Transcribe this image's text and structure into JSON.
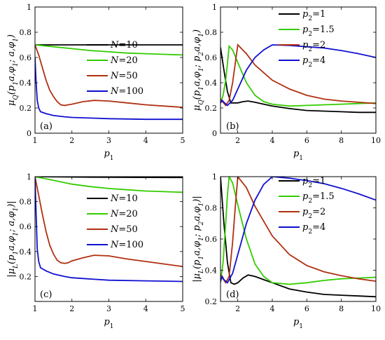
{
  "chart_data": [
    {
      "type": "line",
      "label": "(a)",
      "xlabel": "p1",
      "ylabel": "μQ(p1a,φ1; a,φ1)",
      "xlim": [
        1,
        5
      ],
      "ylim": [
        0,
        1
      ],
      "xticks": [
        1,
        2,
        3,
        4,
        5
      ],
      "yticks": [
        0,
        0.2,
        0.4,
        0.6,
        0.8,
        1
      ],
      "legend_position": "right",
      "series": [
        {
          "name": "N=10",
          "color": "#000000",
          "points": [
            [
              1,
              0.7
            ],
            [
              2,
              0.7
            ],
            [
              3,
              0.7
            ],
            [
              4,
              0.7
            ],
            [
              5,
              0.7
            ]
          ]
        },
        {
          "name": "N=20",
          "color": "#33cc00",
          "points": [
            [
              1,
              0.7
            ],
            [
              1.5,
              0.685
            ],
            [
              2,
              0.67
            ],
            [
              2.5,
              0.655
            ],
            [
              3,
              0.645
            ],
            [
              3.5,
              0.635
            ],
            [
              4,
              0.63
            ],
            [
              4.5,
              0.625
            ],
            [
              5,
              0.62
            ]
          ]
        },
        {
          "name": "N=50",
          "color": "#b03010",
          "points": [
            [
              1,
              0.7
            ],
            [
              1.1,
              0.62
            ],
            [
              1.2,
              0.52
            ],
            [
              1.3,
              0.42
            ],
            [
              1.4,
              0.34
            ],
            [
              1.5,
              0.29
            ],
            [
              1.6,
              0.25
            ],
            [
              1.7,
              0.225
            ],
            [
              1.8,
              0.22
            ],
            [
              1.9,
              0.225
            ],
            [
              2,
              0.23
            ],
            [
              2.3,
              0.25
            ],
            [
              2.6,
              0.26
            ],
            [
              3,
              0.255
            ],
            [
              3.5,
              0.24
            ],
            [
              4,
              0.225
            ],
            [
              4.5,
              0.215
            ],
            [
              5,
              0.205
            ]
          ]
        },
        {
          "name": "N=100",
          "color": "#1010d0",
          "points": [
            [
              1,
              0.6
            ],
            [
              1.03,
              0.4
            ],
            [
              1.06,
              0.26
            ],
            [
              1.1,
              0.2
            ],
            [
              1.15,
              0.17
            ],
            [
              1.3,
              0.155
            ],
            [
              1.5,
              0.14
            ],
            [
              1.8,
              0.13
            ],
            [
              2,
              0.125
            ],
            [
              2.5,
              0.12
            ],
            [
              3,
              0.115
            ],
            [
              4,
              0.11
            ],
            [
              5,
              0.11
            ]
          ]
        }
      ]
    },
    {
      "type": "line",
      "label": "(b)",
      "xlabel": "p1",
      "ylabel": "μQ(p1a,φ1; p2a,φ1)",
      "xlim": [
        1,
        10
      ],
      "ylim": [
        0,
        1
      ],
      "xticks": [
        2,
        4,
        6,
        8,
        10
      ],
      "yticks": [
        0,
        0.2,
        0.4,
        0.6,
        0.8,
        1
      ],
      "legend_position": "top-right",
      "series": [
        {
          "name": "p2=1",
          "color": "#000000",
          "points": [
            [
              1,
              0.68
            ],
            [
              1.2,
              0.5
            ],
            [
              1.4,
              0.33
            ],
            [
              1.6,
              0.24
            ],
            [
              1.8,
              0.24
            ],
            [
              2,
              0.24
            ],
            [
              2.3,
              0.25
            ],
            [
              2.6,
              0.255
            ],
            [
              3,
              0.245
            ],
            [
              3.5,
              0.23
            ],
            [
              4,
              0.215
            ],
            [
              5,
              0.195
            ],
            [
              6,
              0.18
            ],
            [
              7,
              0.175
            ],
            [
              8,
              0.17
            ],
            [
              9,
              0.165
            ],
            [
              10,
              0.165
            ]
          ]
        },
        {
          "name": "p2=1.5",
          "color": "#33cc00",
          "points": [
            [
              1,
              0.24
            ],
            [
              1.15,
              0.3
            ],
            [
              1.3,
              0.42
            ],
            [
              1.4,
              0.55
            ],
            [
              1.5,
              0.69
            ],
            [
              1.7,
              0.66
            ],
            [
              2,
              0.56
            ],
            [
              2.5,
              0.4
            ],
            [
              3,
              0.3
            ],
            [
              3.5,
              0.25
            ],
            [
              4,
              0.23
            ],
            [
              5,
              0.215
            ],
            [
              6,
              0.22
            ],
            [
              7,
              0.225
            ],
            [
              8,
              0.23
            ],
            [
              9,
              0.235
            ],
            [
              10,
              0.24
            ]
          ]
        },
        {
          "name": "p2=2",
          "color": "#b03010",
          "points": [
            [
              1,
              0.27
            ],
            [
              1.3,
              0.22
            ],
            [
              1.5,
              0.26
            ],
            [
              1.7,
              0.4
            ],
            [
              1.85,
              0.55
            ],
            [
              2,
              0.7
            ],
            [
              2.5,
              0.63
            ],
            [
              3,
              0.54
            ],
            [
              4,
              0.42
            ],
            [
              5,
              0.35
            ],
            [
              6,
              0.3
            ],
            [
              7,
              0.27
            ],
            [
              8,
              0.255
            ],
            [
              9,
              0.245
            ],
            [
              10,
              0.235
            ]
          ]
        },
        {
          "name": "p2=4",
          "color": "#1010d0",
          "points": [
            [
              1,
              0.24
            ],
            [
              1.1,
              0.26
            ],
            [
              1.2,
              0.245
            ],
            [
              1.4,
              0.22
            ],
            [
              1.7,
              0.26
            ],
            [
              2,
              0.35
            ],
            [
              2.5,
              0.5
            ],
            [
              3,
              0.6
            ],
            [
              3.5,
              0.66
            ],
            [
              4,
              0.7
            ],
            [
              5,
              0.695
            ],
            [
              6,
              0.685
            ],
            [
              7,
              0.675
            ],
            [
              8,
              0.655
            ],
            [
              9,
              0.63
            ],
            [
              10,
              0.6
            ]
          ]
        }
      ]
    },
    {
      "type": "line",
      "label": "(c)",
      "xlabel": "p1",
      "ylabel": "|μL(p1a,φ1; a,φ1)|",
      "xlim": [
        1,
        5
      ],
      "ylim": [
        0,
        1
      ],
      "xticks": [
        1,
        2,
        3,
        4,
        5
      ],
      "yticks": [
        0.2,
        0.4,
        0.6,
        0.8,
        1
      ],
      "legend_position": "right",
      "series": [
        {
          "name": "N=10",
          "color": "#000000",
          "points": [
            [
              1,
              1.0
            ],
            [
              2,
              0.997
            ],
            [
              3,
              0.995
            ],
            [
              4,
              0.994
            ],
            [
              5,
              0.993
            ]
          ]
        },
        {
          "name": "N=20",
          "color": "#33cc00",
          "points": [
            [
              1,
              1.0
            ],
            [
              1.5,
              0.97
            ],
            [
              2,
              0.94
            ],
            [
              2.5,
              0.92
            ],
            [
              3,
              0.905
            ],
            [
              3.5,
              0.895
            ],
            [
              4,
              0.885
            ],
            [
              4.5,
              0.88
            ],
            [
              5,
              0.875
            ]
          ]
        },
        {
          "name": "N=50",
          "color": "#b03010",
          "points": [
            [
              1,
              1.0
            ],
            [
              1.1,
              0.85
            ],
            [
              1.2,
              0.7
            ],
            [
              1.3,
              0.56
            ],
            [
              1.4,
              0.45
            ],
            [
              1.5,
              0.38
            ],
            [
              1.6,
              0.33
            ],
            [
              1.7,
              0.31
            ],
            [
              1.8,
              0.305
            ],
            [
              1.9,
              0.31
            ],
            [
              2,
              0.325
            ],
            [
              2.3,
              0.35
            ],
            [
              2.6,
              0.37
            ],
            [
              3,
              0.365
            ],
            [
              3.5,
              0.34
            ],
            [
              4,
              0.32
            ],
            [
              4.5,
              0.3
            ],
            [
              5,
              0.28
            ]
          ]
        },
        {
          "name": "N=100",
          "color": "#1010d0",
          "points": [
            [
              1,
              0.99
            ],
            [
              1.03,
              0.7
            ],
            [
              1.06,
              0.42
            ],
            [
              1.1,
              0.32
            ],
            [
              1.15,
              0.27
            ],
            [
              1.3,
              0.245
            ],
            [
              1.5,
              0.22
            ],
            [
              1.8,
              0.2
            ],
            [
              2,
              0.19
            ],
            [
              2.5,
              0.18
            ],
            [
              3,
              0.17
            ],
            [
              4,
              0.165
            ],
            [
              5,
              0.16
            ]
          ]
        }
      ]
    },
    {
      "type": "line",
      "label": "(d)",
      "xlabel": "p1",
      "ylabel": "|μL(p1a,φ1; p2a,φ1)|",
      "xlim": [
        1,
        10
      ],
      "ylim": [
        0.2,
        1
      ],
      "xticks": [
        2,
        4,
        6,
        8,
        10
      ],
      "yticks": [
        0.2,
        0.4,
        0.6,
        0.8,
        1
      ],
      "legend_position": "right",
      "series": [
        {
          "name": "p2=1",
          "color": "#000000",
          "points": [
            [
              1,
              1.0
            ],
            [
              1.2,
              0.7
            ],
            [
              1.4,
              0.45
            ],
            [
              1.6,
              0.32
            ],
            [
              1.8,
              0.31
            ],
            [
              2,
              0.32
            ],
            [
              2.3,
              0.35
            ],
            [
              2.6,
              0.37
            ],
            [
              3,
              0.36
            ],
            [
              3.5,
              0.34
            ],
            [
              4,
              0.32
            ],
            [
              5,
              0.28
            ],
            [
              6,
              0.26
            ],
            [
              7,
              0.245
            ],
            [
              8,
              0.24
            ],
            [
              9,
              0.235
            ],
            [
              10,
              0.23
            ]
          ]
        },
        {
          "name": "p2=1.5",
          "color": "#33cc00",
          "points": [
            [
              1,
              0.32
            ],
            [
              1.15,
              0.45
            ],
            [
              1.3,
              0.7
            ],
            [
              1.4,
              0.88
            ],
            [
              1.5,
              1.0
            ],
            [
              1.7,
              0.96
            ],
            [
              2,
              0.82
            ],
            [
              2.5,
              0.6
            ],
            [
              3,
              0.44
            ],
            [
              3.5,
              0.36
            ],
            [
              4,
              0.32
            ],
            [
              5,
              0.31
            ],
            [
              6,
              0.32
            ],
            [
              7,
              0.335
            ],
            [
              8,
              0.345
            ],
            [
              9,
              0.35
            ],
            [
              10,
              0.355
            ]
          ]
        },
        {
          "name": "p2=2",
          "color": "#b03010",
          "points": [
            [
              1,
              0.37
            ],
            [
              1.3,
              0.32
            ],
            [
              1.5,
              0.36
            ],
            [
              1.7,
              0.58
            ],
            [
              1.85,
              0.8
            ],
            [
              2,
              1.0
            ],
            [
              2.5,
              0.93
            ],
            [
              3,
              0.81
            ],
            [
              4,
              0.62
            ],
            [
              5,
              0.5
            ],
            [
              6,
              0.43
            ],
            [
              7,
              0.39
            ],
            [
              8,
              0.365
            ],
            [
              9,
              0.345
            ],
            [
              10,
              0.33
            ]
          ]
        },
        {
          "name": "p2=4",
          "color": "#1010d0",
          "points": [
            [
              1,
              0.33
            ],
            [
              1.1,
              0.36
            ],
            [
              1.2,
              0.34
            ],
            [
              1.4,
              0.32
            ],
            [
              1.7,
              0.38
            ],
            [
              2,
              0.5
            ],
            [
              2.5,
              0.7
            ],
            [
              3,
              0.85
            ],
            [
              3.5,
              0.95
            ],
            [
              4,
              1.0
            ],
            [
              5,
              0.99
            ],
            [
              6,
              0.975
            ],
            [
              7,
              0.955
            ],
            [
              8,
              0.925
            ],
            [
              9,
              0.89
            ],
            [
              10,
              0.85
            ]
          ]
        }
      ]
    }
  ]
}
